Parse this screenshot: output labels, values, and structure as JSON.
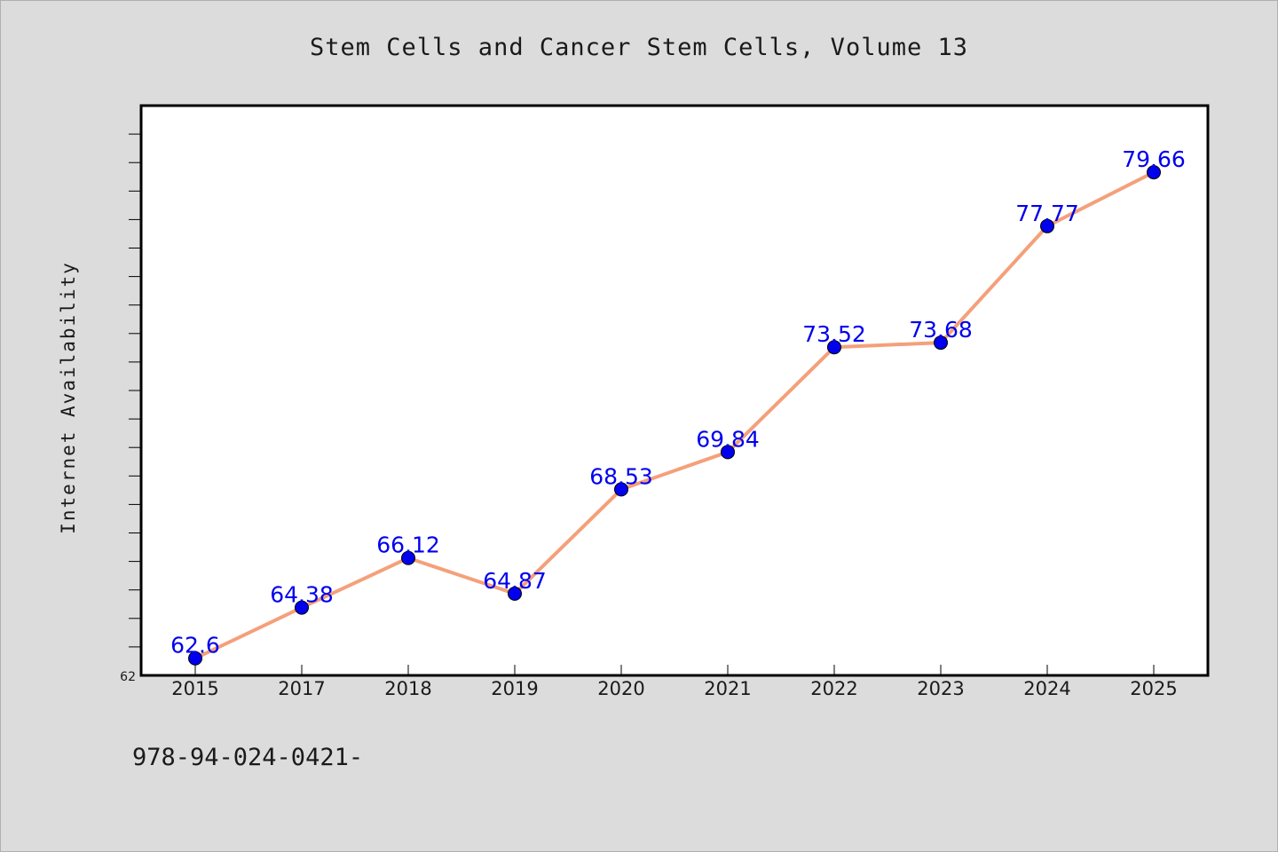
{
  "chart_data": {
    "type": "line",
    "title": "Stem Cells and Cancer Stem Cells, Volume 13",
    "xlabel": "",
    "ylabel": "Internet Availability",
    "categories": [
      "2015",
      "2017",
      "2018",
      "2019",
      "2020",
      "2021",
      "2022",
      "2023",
      "2024",
      "2025"
    ],
    "series": [
      {
        "values": [
          62.6,
          64.38,
          66.12,
          64.87,
          68.53,
          69.84,
          73.52,
          73.68,
          77.77,
          79.66
        ],
        "labels": [
          "62.6",
          "64.38",
          "66.12",
          "64.87",
          "68.53",
          "69.84",
          "73.52",
          "73.68",
          "77.77",
          "79.66"
        ],
        "line_color": "#f4a07a",
        "marker_color": "#0000ee",
        "label_color": "#0000ee"
      }
    ],
    "ylim": [
      62,
      82
    ],
    "yticks": [
      "62"
    ],
    "grid": false,
    "legend": "none"
  },
  "footer": {
    "isbn_text": "978-94-024-0421-"
  }
}
